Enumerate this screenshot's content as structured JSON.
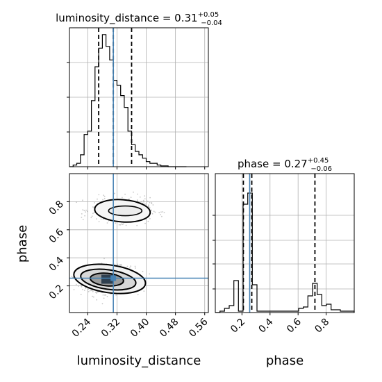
{
  "chart_data": {
    "type": "corner",
    "parameters": [
      "luminosity_distance",
      "phase"
    ],
    "truths": {
      "luminosity_distance": 0.31,
      "phase": 0.255
    },
    "panels": [
      {
        "id": "lumdist-hist",
        "type": "histogram",
        "title_html": {
          "prefix": "luminosity_distance = 0.31",
          "sup": "+0.05",
          "sub": "−0.04"
        },
        "xlim": [
          0.19,
          0.57
        ],
        "xticks": [
          0.24,
          0.32,
          0.4,
          0.48,
          0.56
        ],
        "bin_edges": [
          0.19,
          0.2,
          0.21,
          0.22,
          0.23,
          0.24,
          0.25,
          0.26,
          0.27,
          0.28,
          0.29,
          0.3,
          0.31,
          0.32,
          0.33,
          0.34,
          0.35,
          0.36,
          0.37,
          0.38,
          0.39,
          0.4,
          0.41,
          0.42,
          0.43,
          0.44,
          0.45,
          0.46,
          0.47,
          0.48,
          0.49,
          0.5,
          0.51
        ],
        "counts": [
          0,
          1,
          2,
          7,
          19,
          21,
          39,
          59,
          70,
          78,
          71,
          63,
          51,
          48,
          42,
          35,
          21,
          13,
          9,
          7,
          5,
          3,
          2,
          2,
          1,
          0.5,
          0.5,
          0,
          0,
          0,
          0,
          0
        ],
        "ymax": 82,
        "quantiles": [
          0.27,
          0.31,
          0.36
        ],
        "truth": 0.31,
        "grid": true
      },
      {
        "id": "joint",
        "type": "2d-contour",
        "xlim": [
          0.19,
          0.57
        ],
        "ylim": [
          0.01,
          1.0
        ],
        "xticks": [
          0.24,
          0.32,
          0.4,
          0.48,
          0.56
        ],
        "yticks": [
          0.2,
          0.4,
          0.6,
          0.8
        ],
        "modes": [
          {
            "center": [
              0.3,
              0.25
            ],
            "spread": [
              0.03,
              0.04
            ],
            "weight": 0.72
          },
          {
            "center": [
              0.33,
              0.74
            ],
            "spread": [
              0.035,
              0.04
            ],
            "weight": 0.28
          }
        ],
        "truth": [
          0.31,
          0.255
        ],
        "grid": true
      },
      {
        "id": "phase-hist",
        "type": "histogram",
        "title_html": {
          "prefix": "phase = 0.27",
          "sup": "+0.45",
          "sub": "−0.06"
        },
        "xlim": [
          0.01,
          1.0
        ],
        "xticks": [
          0.2,
          0.4,
          0.6,
          0.8
        ],
        "bin_edges": [
          0.01,
          0.043,
          0.076,
          0.109,
          0.142,
          0.175,
          0.208,
          0.241,
          0.274,
          0.307,
          0.34,
          0.373,
          0.406,
          0.439,
          0.472,
          0.505,
          0.538,
          0.571,
          0.604,
          0.637,
          0.67,
          0.703,
          0.736,
          0.769,
          0.802,
          0.835,
          0.868,
          0.901,
          0.934,
          0.967,
          1.0
        ],
        "counts": [
          0,
          1,
          3,
          5,
          23,
          1,
          78,
          86,
          20,
          1,
          1,
          1,
          1,
          1,
          1,
          1,
          1,
          1,
          3,
          4,
          12,
          21,
          13,
          5,
          6,
          2,
          2,
          1,
          1,
          1
        ],
        "ymax": 100,
        "quantiles": [
          0.21,
          0.27,
          0.72
        ],
        "truth": 0.255,
        "grid": true
      }
    ],
    "axis_labels": {
      "bottom_left": "luminosity_distance",
      "bottom_right": "phase",
      "left": "phase"
    },
    "colors": {
      "truth": "#4682b4",
      "hist": "#000000",
      "grid": "#b0b0b0",
      "points": "#9a9a9a"
    }
  }
}
